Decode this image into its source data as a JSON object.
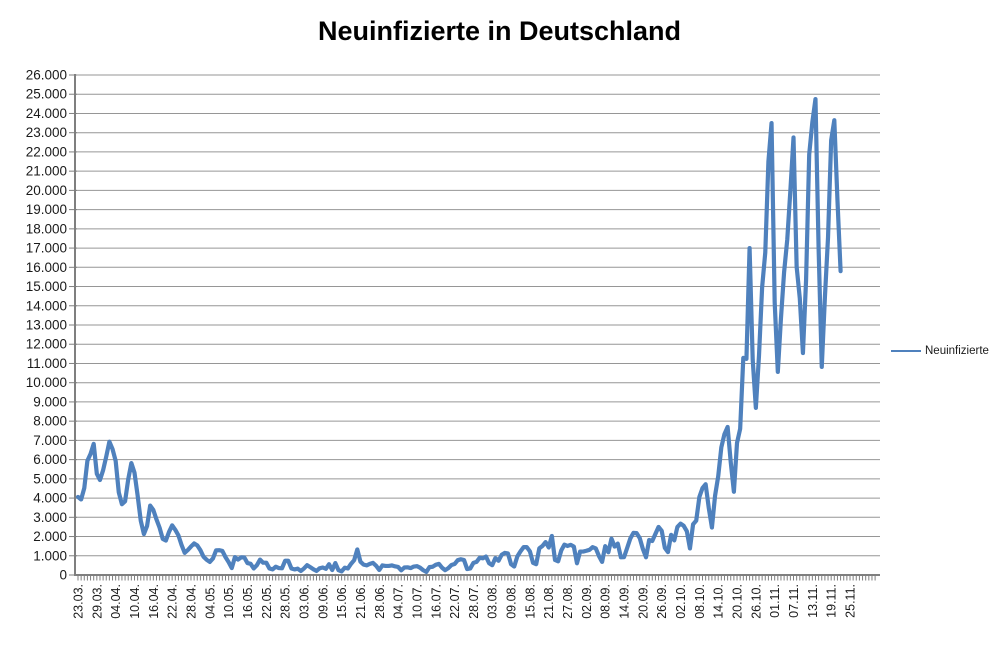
{
  "title": "Neuinfizierte in Deutschland",
  "legend": {
    "label": "Neuinfizierte"
  },
  "colors": {
    "series": "#4F81BD",
    "gridline": "#969696",
    "axis": "#7f7f7f",
    "tick_text": "#1a1a1a",
    "title_text": "#000000",
    "background": "#FFFFFF"
  },
  "chart_data": {
    "type": "line",
    "title": "Neuinfizierte in Deutschland",
    "xlabel": "",
    "ylabel": "",
    "ylim": [
      0,
      26000
    ],
    "y_step": 1000,
    "grid": "horizontal",
    "legend_position": "right",
    "x_tick_every": 6,
    "x_tick_labels": [
      "23.03.",
      "29.03.",
      "04.04.",
      "10.04.",
      "16.04.",
      "22.04.",
      "28.04.",
      "04.05.",
      "10.05.",
      "16.05.",
      "22.05.",
      "28.05.",
      "03.06.",
      "09.06.",
      "15.06.",
      "21.06.",
      "28.06.",
      "04.07.",
      "10.07.",
      "16.07.",
      "22.07.",
      "28.07.",
      "03.08.",
      "09.08.",
      "15.08.",
      "21.08.",
      "27.08.",
      "02.09.",
      "08.09.",
      "14.09.",
      "20.09.",
      "26.09.",
      "02.10.",
      "08.10.",
      "14.10.",
      "20.10.",
      "26.10.",
      "01.11.",
      "07.11.",
      "13.11.",
      "19.11.",
      "25.11."
    ],
    "y_tick_labels": [
      "0",
      "1.000",
      "2.000",
      "3.000",
      "4.000",
      "5.000",
      "6.000",
      "7.000",
      "8.000",
      "9.000",
      "10.000",
      "11.000",
      "12.000",
      "13.000",
      "14.000",
      "15.000",
      "16.000",
      "17.000",
      "18.000",
      "19.000",
      "20.000",
      "21.000",
      "22.000",
      "23.000",
      "24.000",
      "25.000",
      "26.000"
    ],
    "series": [
      {
        "name": "Neuinfizierte",
        "color": "#4F81BD",
        "values": [
          4060,
          3930,
          4520,
          5940,
          6300,
          6820,
          5260,
          4940,
          5450,
          6160,
          6930,
          6550,
          5930,
          4290,
          3680,
          3830,
          4970,
          5820,
          5320,
          4130,
          2820,
          2130,
          2540,
          3610,
          3380,
          2890,
          2460,
          1880,
          1790,
          2240,
          2580,
          2350,
          2060,
          1560,
          1150,
          1300,
          1480,
          1640,
          1540,
          1290,
          950,
          790,
          680,
          860,
          1280,
          1290,
          1250,
          930,
          670,
          360,
          930,
          800,
          920,
          910,
          620,
          580,
          340,
          510,
          800,
          640,
          640,
          340,
          290,
          430,
          360,
          350,
          740,
          740,
          340,
          290,
          330,
          210,
          340,
          510,
          410,
          300,
          210,
          350,
          390,
          320,
          560,
          260,
          620,
          250,
          190,
          380,
          340,
          580,
          770,
          1330,
          690,
          540,
          500,
          580,
          630,
          480,
          260,
          500,
          470,
          470,
          500,
          450,
          420,
          240,
          390,
          400,
          360,
          440,
          460,
          380,
          250,
          160,
          410,
          430,
          530,
          580,
          380,
          250,
          360,
          520,
          570,
          770,
          820,
          780,
          310,
          340,
          630,
          680,
          900,
          870,
          960,
          610,
          510,
          880,
          740,
          1050,
          1150,
          1120,
          560,
          440,
          970,
          1230,
          1450,
          1450,
          1230,
          630,
          560,
          1390,
          1510,
          1710,
          1430,
          2030,
          780,
          710,
          1280,
          1580,
          1510,
          1570,
          1480,
          610,
          1220,
          1220,
          1260,
          1310,
          1450,
          1380,
          990,
          680,
          1500,
          1180,
          1890,
          1480,
          1630,
          920,
          930,
          1410,
          1900,
          2190,
          2180,
          1920,
          1350,
          920,
          1820,
          1770,
          2140,
          2500,
          2300,
          1410,
          1190,
          2090,
          1800,
          2500,
          2670,
          2560,
          2280,
          1380,
          2640,
          2830,
          4060,
          4520,
          4720,
          3480,
          2470,
          4120,
          5130,
          6640,
          7330,
          7700,
          5860,
          4330,
          6870,
          7600,
          11290,
          11240,
          17000,
          11180,
          8690,
          11410,
          14960,
          16770,
          21500,
          23500,
          14180,
          10560,
          13350,
          15750,
          17430,
          19990,
          22750,
          16020,
          14390,
          11540,
          15330,
          21870,
          23540,
          24750,
          16950,
          10820,
          14420,
          17560,
          22610,
          23650,
          19500,
          15800,
          null,
          null,
          null
        ]
      }
    ]
  }
}
